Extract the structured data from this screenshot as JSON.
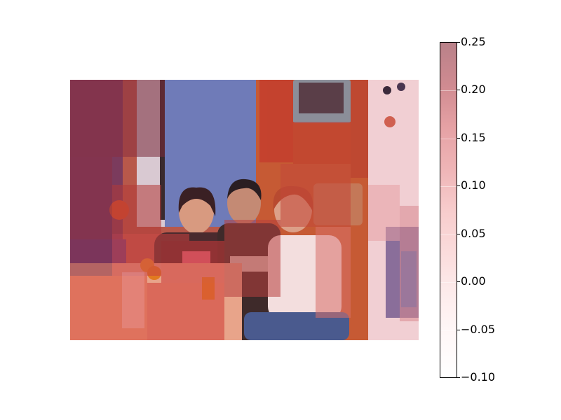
{
  "figure": {
    "image_subject": "photo-with-relevance-heatmap-overlay",
    "colorbar": {
      "min": -0.1,
      "max": 0.25,
      "ticks": [
        "0.25",
        "0.20",
        "0.15",
        "0.10",
        "0.05",
        "0.00",
        "−0.05",
        "−0.10"
      ],
      "colormap": [
        "#ffffff",
        "#fbe0e0",
        "#f2b9bc",
        "#d68f95",
        "#b98189"
      ]
    },
    "colors": {
      "overlay_red": "#d83a3a",
      "overlay_dark": "#8a3040",
      "curtain_blue": "#6f7bb8",
      "wall_orange": "#c65a34"
    }
  }
}
